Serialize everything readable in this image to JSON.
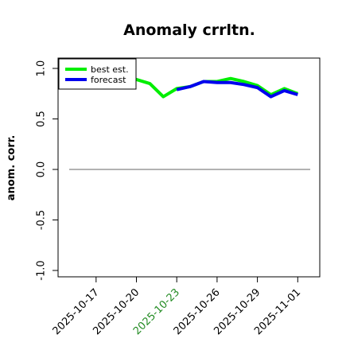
{
  "chart_data": {
    "type": "line",
    "title": "Anomaly crrltn.",
    "xlabel": "",
    "ylabel": "anom. corr.",
    "ylim": [
      -1.0,
      1.0
    ],
    "yticks": [
      "-1.0",
      "-0.5",
      "0.0",
      "0.5",
      "1.0"
    ],
    "x": [
      "2025-10-15",
      "2025-10-16",
      "2025-10-17",
      "2025-10-18",
      "2025-10-19",
      "2025-10-20",
      "2025-10-21",
      "2025-10-22",
      "2025-10-23",
      "2025-10-24",
      "2025-10-25",
      "2025-10-26",
      "2025-10-27",
      "2025-10-28",
      "2025-10-29",
      "2025-10-30",
      "2025-10-31",
      "2025-11-01"
    ],
    "xtick_labels": [
      {
        "label": "2025-10-17",
        "color": "#000000"
      },
      {
        "label": "2025-10-20",
        "color": "#000000"
      },
      {
        "label": "2025-10-23",
        "color": "#228B22"
      },
      {
        "label": "2025-10-26",
        "color": "#000000"
      },
      {
        "label": "2025-10-29",
        "color": "#000000"
      },
      {
        "label": "2025-11-01",
        "color": "#000000"
      }
    ],
    "series": [
      {
        "name": "best est.",
        "color": "#00ee00",
        "values": [
          null,
          null,
          null,
          null,
          0.93,
          0.89,
          0.85,
          0.72,
          0.8,
          0.82,
          0.87,
          0.87,
          0.9,
          0.87,
          0.83,
          0.74,
          0.8,
          0.75
        ]
      },
      {
        "name": "forecast",
        "color": "#0000ee",
        "values": [
          null,
          null,
          null,
          null,
          null,
          null,
          null,
          null,
          0.79,
          0.82,
          0.87,
          0.86,
          0.86,
          0.84,
          0.81,
          0.72,
          0.78,
          0.74
        ]
      }
    ],
    "reference_line": {
      "y": 0.0,
      "color": "#666666"
    },
    "grid": false,
    "legend_position": "top-left"
  }
}
